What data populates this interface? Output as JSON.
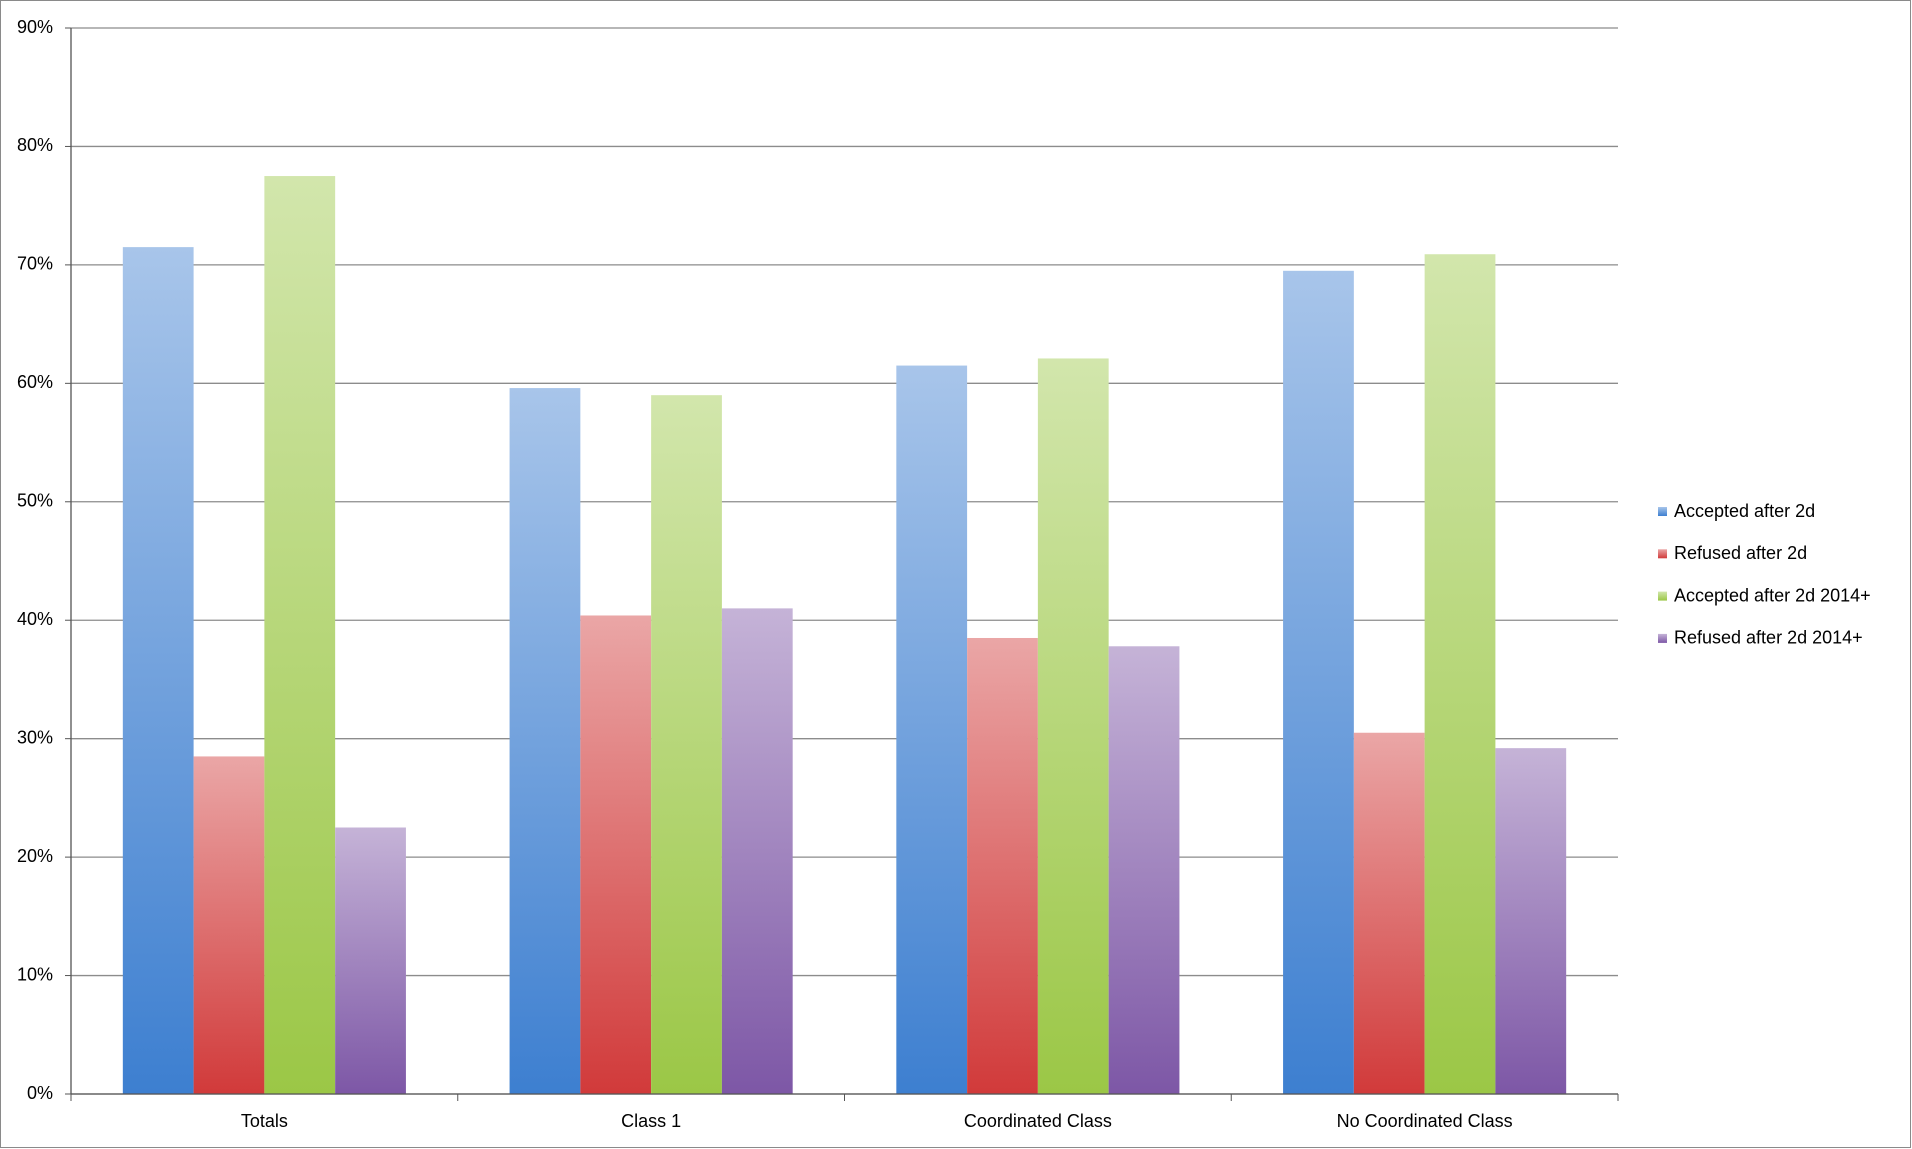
{
  "chart_data": {
    "type": "bar",
    "categories": [
      "Totals",
      "Class 1",
      "Coordinated Class",
      "No Coordinated Class"
    ],
    "series": [
      {
        "name": "Accepted after 2d",
        "color": "#3d7fd0",
        "values": [
          71.5,
          59.6,
          61.5,
          69.5
        ]
      },
      {
        "name": "Refused after 2d",
        "color": "#d13a3a",
        "values": [
          28.5,
          40.4,
          38.5,
          30.5
        ]
      },
      {
        "name": "Accepted after 2d 2014+",
        "color": "#9bc746",
        "values": [
          77.5,
          59.0,
          62.1,
          70.9
        ]
      },
      {
        "name": "Refused after 2d 2014+",
        "color": "#7d57a6",
        "values": [
          22.5,
          41.0,
          37.8,
          29.2
        ]
      }
    ],
    "ylim": [
      0,
      90
    ],
    "yticks": [
      {
        "value": 0,
        "label": "0%"
      },
      {
        "value": 10,
        "label": "10%"
      },
      {
        "value": 20,
        "label": "20%"
      },
      {
        "value": 30,
        "label": "30%"
      },
      {
        "value": 40,
        "label": "40%"
      },
      {
        "value": 50,
        "label": "50%"
      },
      {
        "value": 60,
        "label": "60%"
      },
      {
        "value": 70,
        "label": "70%"
      },
      {
        "value": 80,
        "label": "80%"
      },
      {
        "value": 90,
        "label": "90%"
      }
    ],
    "grid": true,
    "legend": "right"
  }
}
